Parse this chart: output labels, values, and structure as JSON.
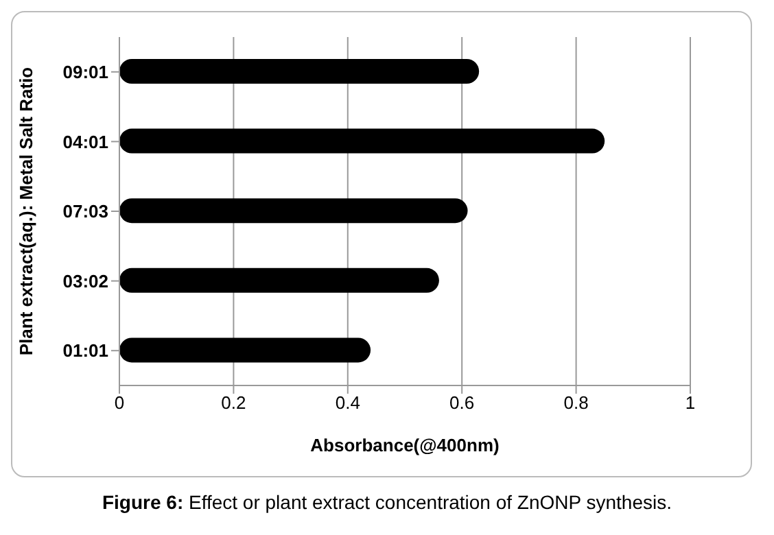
{
  "chart_data": {
    "type": "bar",
    "orientation": "horizontal",
    "title": "Figure 6: Effect or plant extract concentration of ZnONP synthesis.",
    "xlabel": "Absorbance(@400nm)",
    "ylabel": "Plant extract(aq.): Metal Salt Ratio",
    "categories": [
      "09:01",
      "04:01",
      "07:03",
      "03:02",
      "01:01"
    ],
    "values": [
      0.63,
      0.85,
      0.61,
      0.56,
      0.44
    ],
    "color": "#000000",
    "xlim": [
      0,
      1
    ],
    "xticks": [
      0,
      0.2,
      0.4,
      0.6,
      0.8,
      1
    ],
    "grid": "x"
  }
}
